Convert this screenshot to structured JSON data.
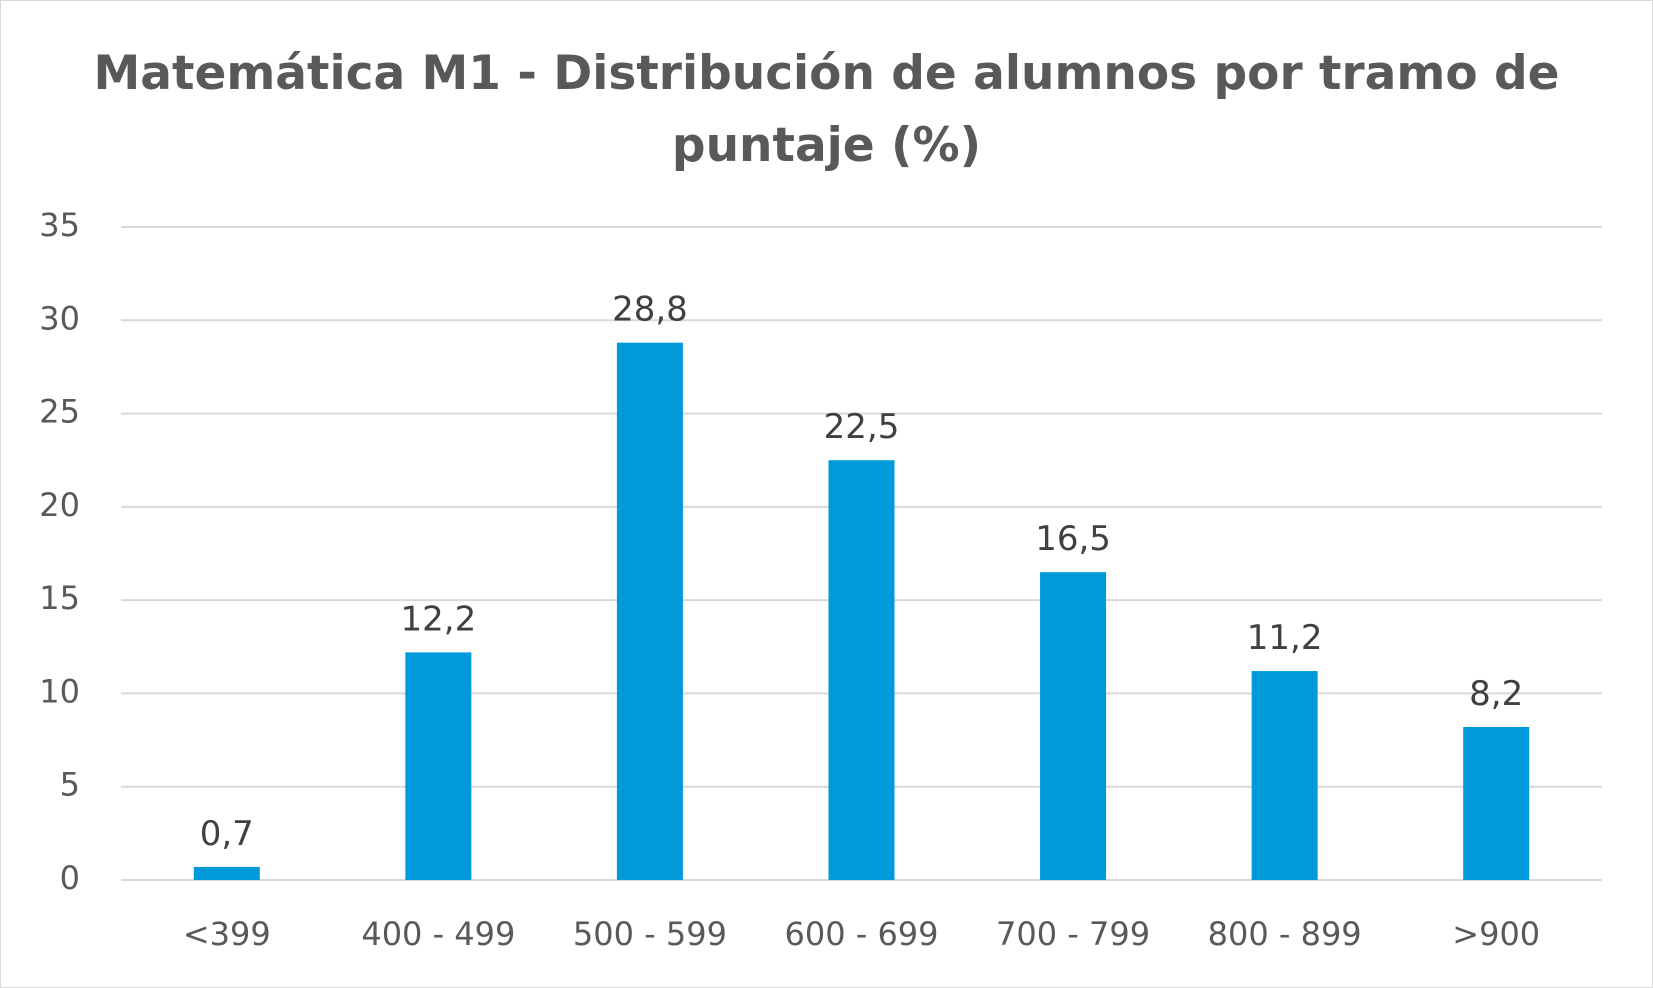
{
  "chart_data": {
    "type": "bar",
    "title": "Matemática M1 - Distribución de alumnos por tramo de puntaje (%)",
    "categories": [
      "<399",
      "400 - 499",
      "500 - 599",
      "600 - 699",
      "700 - 799",
      "800 - 899",
      ">900"
    ],
    "values": [
      0.7,
      12.2,
      28.8,
      22.5,
      16.5,
      11.2,
      8.2
    ],
    "data_labels": [
      "0,7",
      "12,2",
      "28,8",
      "22,5",
      "16,5",
      "11,2",
      "8,2"
    ],
    "y_ticks": [
      "0",
      "5",
      "10",
      "15",
      "20",
      "25",
      "30",
      "35"
    ],
    "ylim": [
      0,
      35
    ],
    "ytick_step": 5,
    "grid": true,
    "legend": "none",
    "bar_color": "#009ADA",
    "grid_color": "#D9D9D9"
  }
}
